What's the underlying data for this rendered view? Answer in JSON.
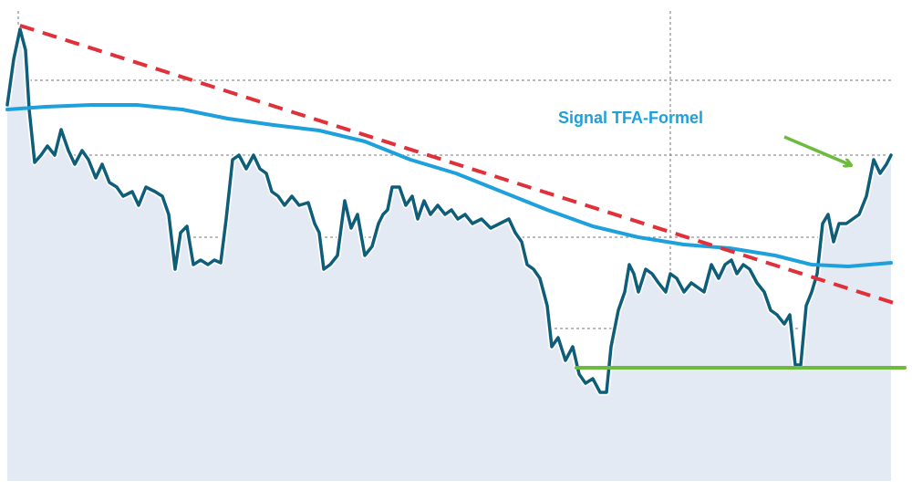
{
  "chart_data": {
    "type": "line",
    "xlim": [
      0,
      1000
    ],
    "ylim": [
      0,
      537
    ],
    "xticks": [
      20,
      735
    ],
    "yticks": [
      59,
      177,
      277,
      367,
      449
    ],
    "grid": true,
    "area_color": "#e4eaf3",
    "series": [
      {
        "color": "#0e5e7a",
        "area": true,
        "x": [
          8,
          15,
          22,
          28,
          32,
          38,
          45,
          52,
          60,
          67,
          75,
          82,
          90,
          97,
          105,
          112,
          120,
          128,
          135,
          145,
          152,
          160,
          170,
          178,
          185,
          192,
          198,
          205,
          212,
          220,
          228,
          235,
          242,
          248,
          255,
          262,
          270,
          278,
          285,
          292,
          298,
          305,
          312,
          320,
          328,
          338,
          345,
          350,
          355,
          362,
          370,
          378,
          385,
          392,
          400,
          408,
          415,
          420,
          425,
          430,
          438,
          445,
          452,
          458,
          465,
          472,
          480,
          488,
          495,
          502,
          510,
          518,
          528,
          538,
          548,
          558,
          565,
          572,
          578,
          585,
          592,
          600,
          605,
          612,
          620,
          628,
          635,
          642,
          650,
          658,
          665,
          670,
          678,
          685,
          690,
          695,
          700,
          708,
          715,
          722,
          730,
          735,
          742,
          750,
          758,
          765,
          772,
          780,
          788,
          795,
          802,
          808,
          815,
          822,
          830,
          838,
          845,
          852,
          860,
          866,
          872,
          878,
          884,
          890,
          896,
          902,
          908,
          914,
          920,
          928,
          935,
          942,
          950,
          958,
          965,
          972,
          977
        ],
        "values": [
          422,
          472,
          505,
          482,
          417,
          359,
          367,
          377,
          367,
          395,
          372,
          357,
          372,
          362,
          342,
          357,
          337,
          332,
          322,
          327,
          312,
          332,
          327,
          322,
          302,
          242,
          282,
          289,
          247,
          252,
          247,
          252,
          249,
          297,
          362,
          367,
          352,
          367,
          352,
          347,
          327,
          322,
          312,
          322,
          312,
          315,
          292,
          282,
          242,
          247,
          257,
          317,
          287,
          302,
          257,
          267,
          292,
          302,
          307,
          332,
          332,
          312,
          322,
          297,
          317,
          302,
          312,
          302,
          307,
          297,
          302,
          292,
          297,
          287,
          292,
          297,
          282,
          272,
          247,
          242,
          232,
          202,
          157,
          167,
          142,
          157,
          127,
          117,
          122,
          107,
          107,
          157,
          197,
          217,
          247,
          237,
          217,
          242,
          237,
          227,
          217,
          237,
          232,
          217,
          227,
          222,
          217,
          247,
          232,
          247,
          252,
          237,
          247,
          242,
          227,
          217,
          197,
          192,
          182,
          192,
          137,
          137,
          202,
          217,
          237,
          292,
          302,
          272,
          292,
          292,
          297,
          302,
          322,
          362,
          347,
          357,
          367
        ]
      },
      {
        "name": "Signal TFA-Formel",
        "color": "#1ea0dc",
        "x": [
          8,
          50,
          100,
          150,
          200,
          250,
          300,
          350,
          400,
          450,
          500,
          550,
          600,
          650,
          700,
          750,
          800,
          850,
          890,
          930,
          977
        ],
        "values": [
          417,
          420,
          422,
          422,
          417,
          407,
          400,
          394,
          382,
          362,
          347,
          327,
          307,
          289,
          277,
          269,
          265,
          257,
          247,
          245,
          249
        ]
      },
      {
        "color": "#e0303a",
        "dashed": true,
        "x": [
          22,
          980
        ],
        "values": [
          509,
          205
        ]
      },
      {
        "color": "#6cbb3c",
        "x": [
          632,
          992
        ],
        "values": [
          134,
          134
        ]
      }
    ]
  }
}
